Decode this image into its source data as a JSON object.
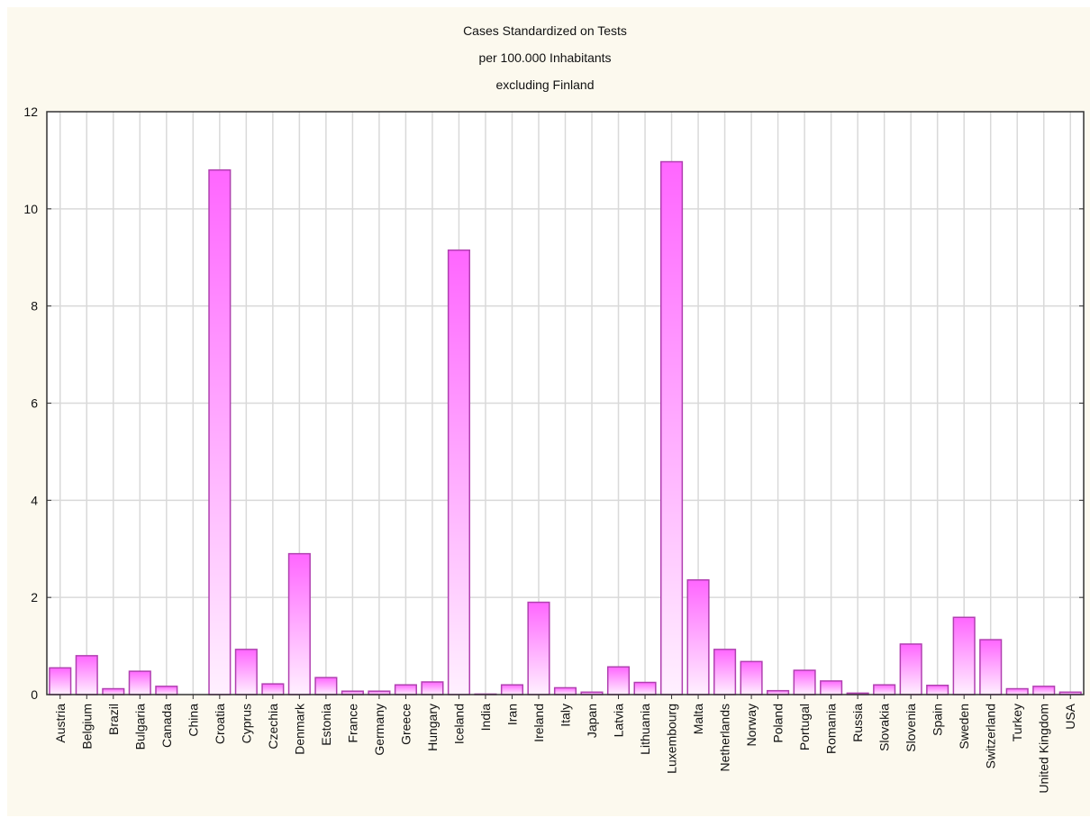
{
  "chart_data": {
    "type": "bar",
    "title": [
      "Cases Standardized on Tests",
      "per 100.000 Inhabitants",
      "excluding Finland"
    ],
    "xlabel": "",
    "ylabel": "",
    "ylim": [
      0,
      12
    ],
    "yticks": [
      0,
      2,
      4,
      6,
      8,
      10,
      12
    ],
    "grid": true,
    "categories": [
      "Austria",
      "Belgium",
      "Brazil",
      "Bulgaria",
      "Canada",
      "China",
      "Croatia",
      "Cyprus",
      "Czechia",
      "Denmark",
      "Estonia",
      "France",
      "Germany",
      "Greece",
      "Hungary",
      "Iceland",
      "India",
      "Iran",
      "Ireland",
      "Italy",
      "Japan",
      "Latvia",
      "Lithuania",
      "Luxembourg",
      "Malta",
      "Netherlands",
      "Norway",
      "Poland",
      "Portugal",
      "Romania",
      "Russia",
      "Slovakia",
      "Slovenia",
      "Spain",
      "Sweden",
      "Switzerland",
      "Turkey",
      "United Kingdom",
      "USA"
    ],
    "values": [
      0.55,
      0.8,
      0.12,
      0.48,
      0.17,
      0.0,
      10.8,
      0.93,
      0.22,
      2.9,
      0.35,
      0.07,
      0.07,
      0.2,
      0.26,
      9.15,
      0.01,
      0.2,
      1.9,
      0.14,
      0.05,
      0.57,
      0.25,
      10.97,
      2.36,
      0.93,
      0.68,
      0.08,
      0.5,
      0.28,
      0.03,
      0.2,
      1.04,
      0.19,
      1.59,
      1.13,
      0.12,
      0.17,
      0.05
    ],
    "colors": {
      "bar_top": "#ff66ff",
      "bar_bottom": "#fff0ff",
      "bar_stroke": "#b040b0",
      "grid": "#d9d9d9",
      "axis": "#333333",
      "panel": "#fcf9ee",
      "plot": "#ffffff"
    }
  }
}
